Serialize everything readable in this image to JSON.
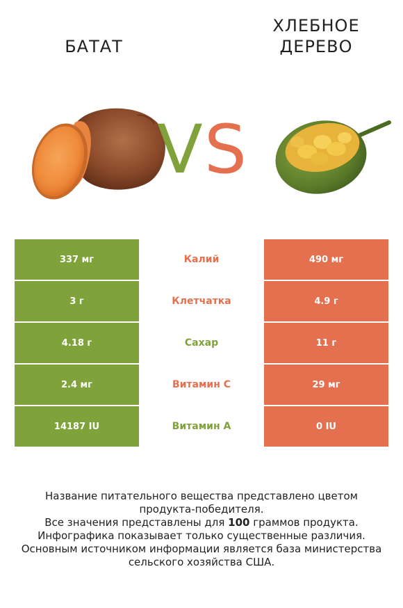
{
  "colors": {
    "green": "#7fa23a",
    "orange": "#e4704f"
  },
  "left_title": "БАТАТ",
  "right_title_line1": "ХЛЕБНОЕ",
  "right_title_line2": "ДЕРЕВО",
  "vs_left": "V",
  "vs_right": "S",
  "rows": [
    {
      "left": "337 мг",
      "label": "Калий",
      "right": "490 мг",
      "winner": "right"
    },
    {
      "left": "3 г",
      "label": "Клетчатка",
      "right": "4.9 г",
      "winner": "right"
    },
    {
      "left": "4.18 г",
      "label": "Сахар",
      "right": "11 г",
      "winner": "left"
    },
    {
      "left": "2.4 мг",
      "label": "Витамин C",
      "right": "29 мг",
      "winner": "right"
    },
    {
      "left": "14187 IU",
      "label": "Витамин A",
      "right": "0 IU",
      "winner": "left"
    }
  ],
  "footer": {
    "line1": "Название питательного вещества представлено цветом",
    "line2": "продукта-победителя.",
    "line3_before": "Все значения представлены для ",
    "line3_bold": "100",
    "line3_after": " граммов продукта.",
    "line4": "Инфографика показывает только существенные различия.",
    "line5": "Основным источником информации является база министерства",
    "line6": "сельского хозяйства США."
  }
}
